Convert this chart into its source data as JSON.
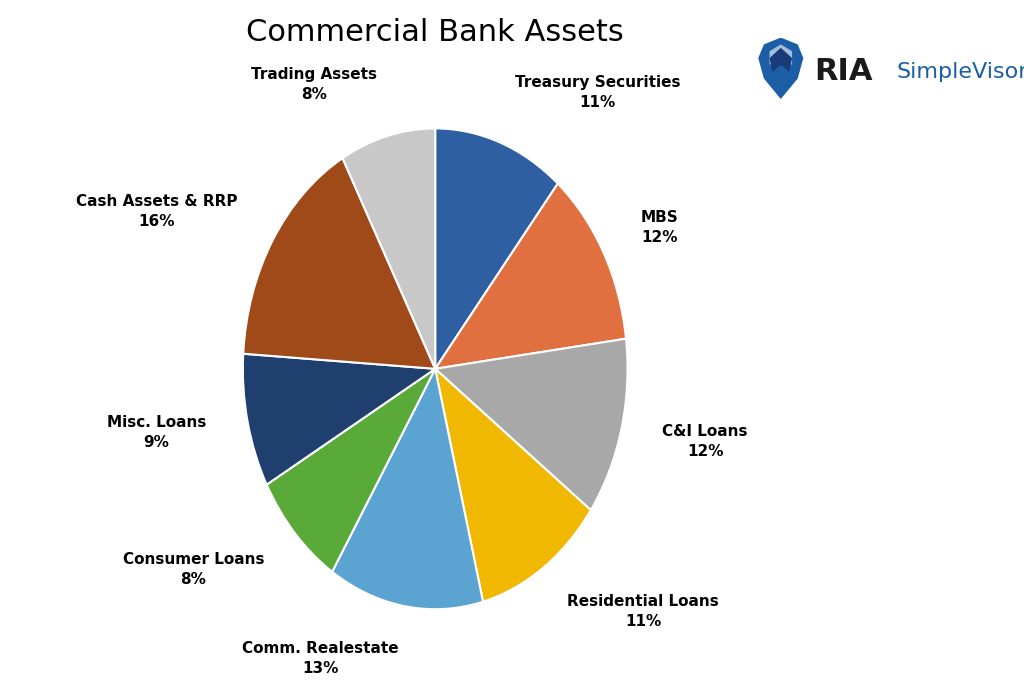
{
  "title": "Commercial Bank Assets",
  "slices": [
    {
      "label": "Treasury Securities",
      "pct": 11,
      "color": "#2E5FA3"
    },
    {
      "label": "MBS",
      "pct": 12,
      "color": "#E07040"
    },
    {
      "label": "C&I Loans",
      "pct": 12,
      "color": "#A8A8A8"
    },
    {
      "label": "Residential Loans",
      "pct": 11,
      "color": "#F0B800"
    },
    {
      "label": "Comm. Realestate",
      "pct": 13,
      "color": "#5BA3D0"
    },
    {
      "label": "Consumer Loans",
      "pct": 8,
      "color": "#5AAA3A"
    },
    {
      "label": "Misc. Loans",
      "pct": 9,
      "color": "#1F3F6E"
    },
    {
      "label": "Cash Assets & RRP",
      "pct": 16,
      "color": "#A04A1A"
    },
    {
      "label": "Trading Assets",
      "pct": 8,
      "color": "#C8C8C8"
    }
  ],
  "title_fontsize": 22,
  "label_fontsize": 11,
  "background_color": "#FFFFFF",
  "startangle": 90,
  "ria_color": "#1a1a1a",
  "simplevisor_color": "#1B5EA6",
  "ria_fontsize": 22,
  "simplevisor_fontsize": 16
}
